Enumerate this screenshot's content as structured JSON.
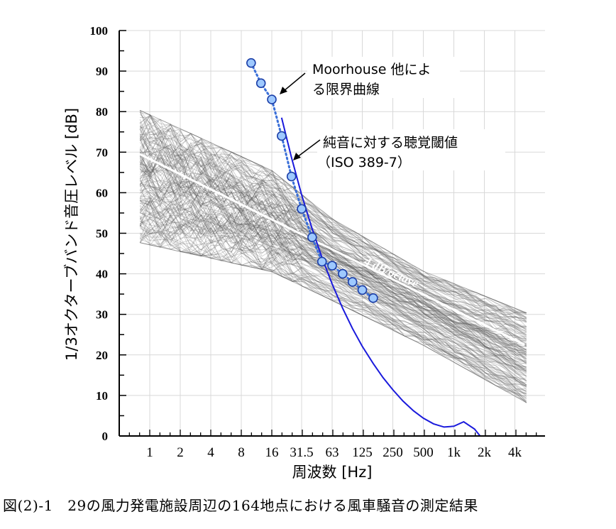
{
  "caption": "図(2)-1　29の風力発電施設周辺の164地点における風車騒音の測定結果",
  "chart_data": {
    "type": "line",
    "xlabel": "周波数 [Hz]",
    "ylabel": "1/3オクターブバンド音圧レベル [dB]",
    "xscale": "log2 (1/3-octave bands)",
    "x_tick_labels": [
      "1",
      "2",
      "4",
      "8",
      "16",
      "31.5",
      "63",
      "125",
      "250",
      "500",
      "1k",
      "2k",
      "4k"
    ],
    "x_tick_values": [
      1,
      2,
      4,
      8,
      16,
      31.5,
      63,
      125,
      250,
      500,
      1000,
      2000,
      4000
    ],
    "xlim": [
      0.5,
      8000
    ],
    "ylim": [
      0,
      100
    ],
    "y_ticks": [
      0,
      10,
      20,
      30,
      40,
      50,
      60,
      70,
      80,
      90,
      100
    ],
    "grid": true,
    "series": [
      {
        "name": "Moorhouse 他による限界曲線",
        "style": "dotted-with-circles",
        "color": "#3a6fd8",
        "marker_fill": "#9ec9ff",
        "x": [
          10,
          12.5,
          16,
          20,
          25,
          31.5,
          40,
          50,
          63,
          80,
          100,
          125,
          160
        ],
        "y": [
          92,
          87,
          83,
          74,
          64,
          56,
          49,
          43,
          42,
          40,
          38,
          36,
          34
        ]
      },
      {
        "name": "純音に対する聴覚閾値 (ISO 389-7)",
        "style": "solid",
        "color": "#1a1adc",
        "x": [
          20,
          25,
          31.5,
          40,
          50,
          63,
          80,
          100,
          125,
          160,
          200,
          250,
          315,
          400,
          500,
          630,
          800,
          1000,
          1250,
          1600,
          2000
        ],
        "y": [
          78.5,
          68.7,
          59.5,
          51.1,
          44.0,
          37.5,
          31.5,
          26.5,
          22.1,
          17.9,
          14.4,
          11.4,
          8.6,
          6.2,
          4.4,
          3.0,
          2.2,
          2.4,
          3.5,
          1.7,
          -1.3
        ]
      },
      {
        "name": "4 dB/octave",
        "style": "solid",
        "color": "#ffffff",
        "x": [
          0.8,
          5000
        ],
        "y": [
          69.5,
          22.5
        ]
      }
    ],
    "measured_spectra": {
      "count": 164,
      "color": "#808080",
      "band_range_hz": [
        0.8,
        5000
      ],
      "upper_envelope": {
        "x": [
          0.8,
          16,
          63,
          500,
          5000
        ],
        "y": [
          81,
          66,
          54,
          41,
          31
        ]
      },
      "lower_envelope": {
        "x": [
          0.8,
          16,
          63,
          500,
          5000
        ],
        "y": [
          47,
          40,
          33,
          22,
          8
        ]
      }
    },
    "annotations": [
      {
        "text_lines": [
          "Moorhouse 他によ",
          "る限界曲線"
        ]
      },
      {
        "text_lines": [
          "純音に対する聴覚閾値",
          "（ISO 389-7）"
        ]
      },
      {
        "text": "4 dB/octave"
      }
    ]
  }
}
